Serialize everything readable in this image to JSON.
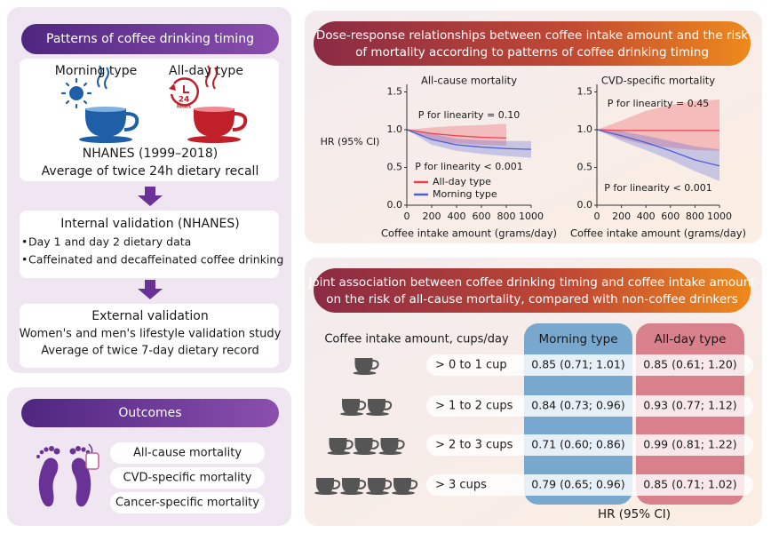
{
  "timing": {
    "title": "Patterns of coffee drinking timing",
    "types": [
      "Morning type",
      "All-day type"
    ],
    "clock_number": "24",
    "clock_unit": "hours",
    "source": "NHANES (1999–2018)",
    "method": "Average of twice 24h dietary recall",
    "internal": {
      "title": "Internal validation (NHANES)",
      "items": [
        "Day 1 and day 2 dietary data",
        "Caffeinated and decaffeinated coffee drinking"
      ]
    },
    "external": {
      "title": "External validation",
      "lines": [
        "Women's and men's lifestyle validation study",
        "Average of twice 7-day dietary record"
      ]
    }
  },
  "outcomes": {
    "title": "Outcomes",
    "items": [
      "All-cause mortality",
      "CVD-specific mortality",
      "Cancer-specific mortality"
    ]
  },
  "dose_response": {
    "title_lines": [
      "Dose-response relationships between coffee intake amount and the risk",
      "of mortality according to patterns of coffee drinking timing"
    ],
    "y_label": "HR (95% CI)",
    "charts": [
      {
        "type": "line",
        "title": "All-cause mortality",
        "x_label": "Coffee intake amount (grams/day)",
        "x": [
          0,
          200,
          400,
          600,
          800,
          1000
        ],
        "xlim": [
          0,
          1000
        ],
        "xticks": [
          0,
          200,
          400,
          600,
          800,
          1000
        ],
        "ylim": [
          0,
          1.6
        ],
        "yticks": [
          {
            "value": 0,
            "label": "0.0"
          },
          0.5,
          {
            "value": 1,
            "label": "1.0"
          },
          1.5
        ],
        "series": [
          {
            "name": "All-day type",
            "color": "#e8424f",
            "values": [
              1.0,
              0.95,
              0.92,
              0.9,
              0.89,
              null
            ],
            "ci_lower": [
              1.0,
              0.86,
              0.82,
              0.8,
              0.79,
              null
            ],
            "ci_upper": [
              1.0,
              1.03,
              1.05,
              1.06,
              1.08,
              null
            ]
          },
          {
            "name": "Morning type",
            "color": "#4a5fd8",
            "values": [
              1.0,
              0.87,
              0.8,
              0.77,
              0.75,
              0.74
            ],
            "ci_lower": [
              1.0,
              0.8,
              0.72,
              0.68,
              0.65,
              0.63
            ],
            "ci_upper": [
              1.0,
              0.95,
              0.88,
              0.86,
              0.85,
              0.85
            ]
          }
        ],
        "annotations": [
          "P for linearity = 0.10",
          "P for linearity < 0.001"
        ],
        "legend": true
      },
      {
        "type": "line",
        "title": "CVD-specific mortality",
        "x_label": "Coffee intake amount (grams/day)",
        "x": [
          0,
          200,
          400,
          600,
          800,
          1000
        ],
        "xlim": [
          0,
          1000
        ],
        "xticks": [
          0,
          200,
          400,
          600,
          800,
          1000
        ],
        "ylim": [
          0,
          1.6
        ],
        "yticks": [
          {
            "value": 0,
            "label": "0.0"
          },
          0.5,
          {
            "value": 1,
            "label": "1.0"
          },
          1.5
        ],
        "series": [
          {
            "name": "All-day type",
            "color": "#e8424f",
            "values": [
              1.0,
              0.99,
              0.99,
              0.99,
              0.99,
              0.99
            ],
            "ci_lower": [
              1.0,
              0.88,
              0.8,
              0.76,
              0.73,
              0.72
            ],
            "ci_upper": [
              1.0,
              1.12,
              1.25,
              1.33,
              1.38,
              1.4
            ]
          },
          {
            "name": "Morning type",
            "color": "#4a5fd8",
            "values": [
              1.0,
              0.92,
              0.83,
              0.72,
              0.6,
              0.52
            ],
            "ci_lower": [
              1.0,
              0.85,
              0.73,
              0.6,
              0.45,
              0.32
            ],
            "ci_upper": [
              1.0,
              0.98,
              0.92,
              0.85,
              0.78,
              0.74
            ]
          }
        ],
        "annotations": [
          "P for linearity = 0.45",
          "P for linearity < 0.001"
        ],
        "legend": false
      }
    ]
  },
  "joint": {
    "title_lines": [
      "Joint association between coffee drinking timing and coffee intake amount",
      "on the risk of all-cause mortality, compared with non-coffee drinkers"
    ],
    "row_header": "Coffee intake amount, cups/day",
    "columns": [
      "Morning type",
      "All-day type"
    ],
    "rows": [
      {
        "label": "> 0 to 1 cup",
        "cells": [
          "0.85 (0.71; 1.01)",
          "0.85 (0.61; 1.20)"
        ]
      },
      {
        "label": "> 1 to 2 cups",
        "cells": [
          "0.84 (0.73; 0.96)",
          "0.93 (0.77; 1.12)"
        ]
      },
      {
        "label": "> 2 to 3 cups",
        "cells": [
          "0.71 (0.60; 0.86)",
          "0.99 (0.81; 1.22)"
        ]
      },
      {
        "label": "> 3 cups",
        "cells": [
          "0.79 (0.65; 0.96)",
          "0.85 (0.71; 1.02)"
        ]
      }
    ],
    "footer": "HR (95% CI)"
  }
}
